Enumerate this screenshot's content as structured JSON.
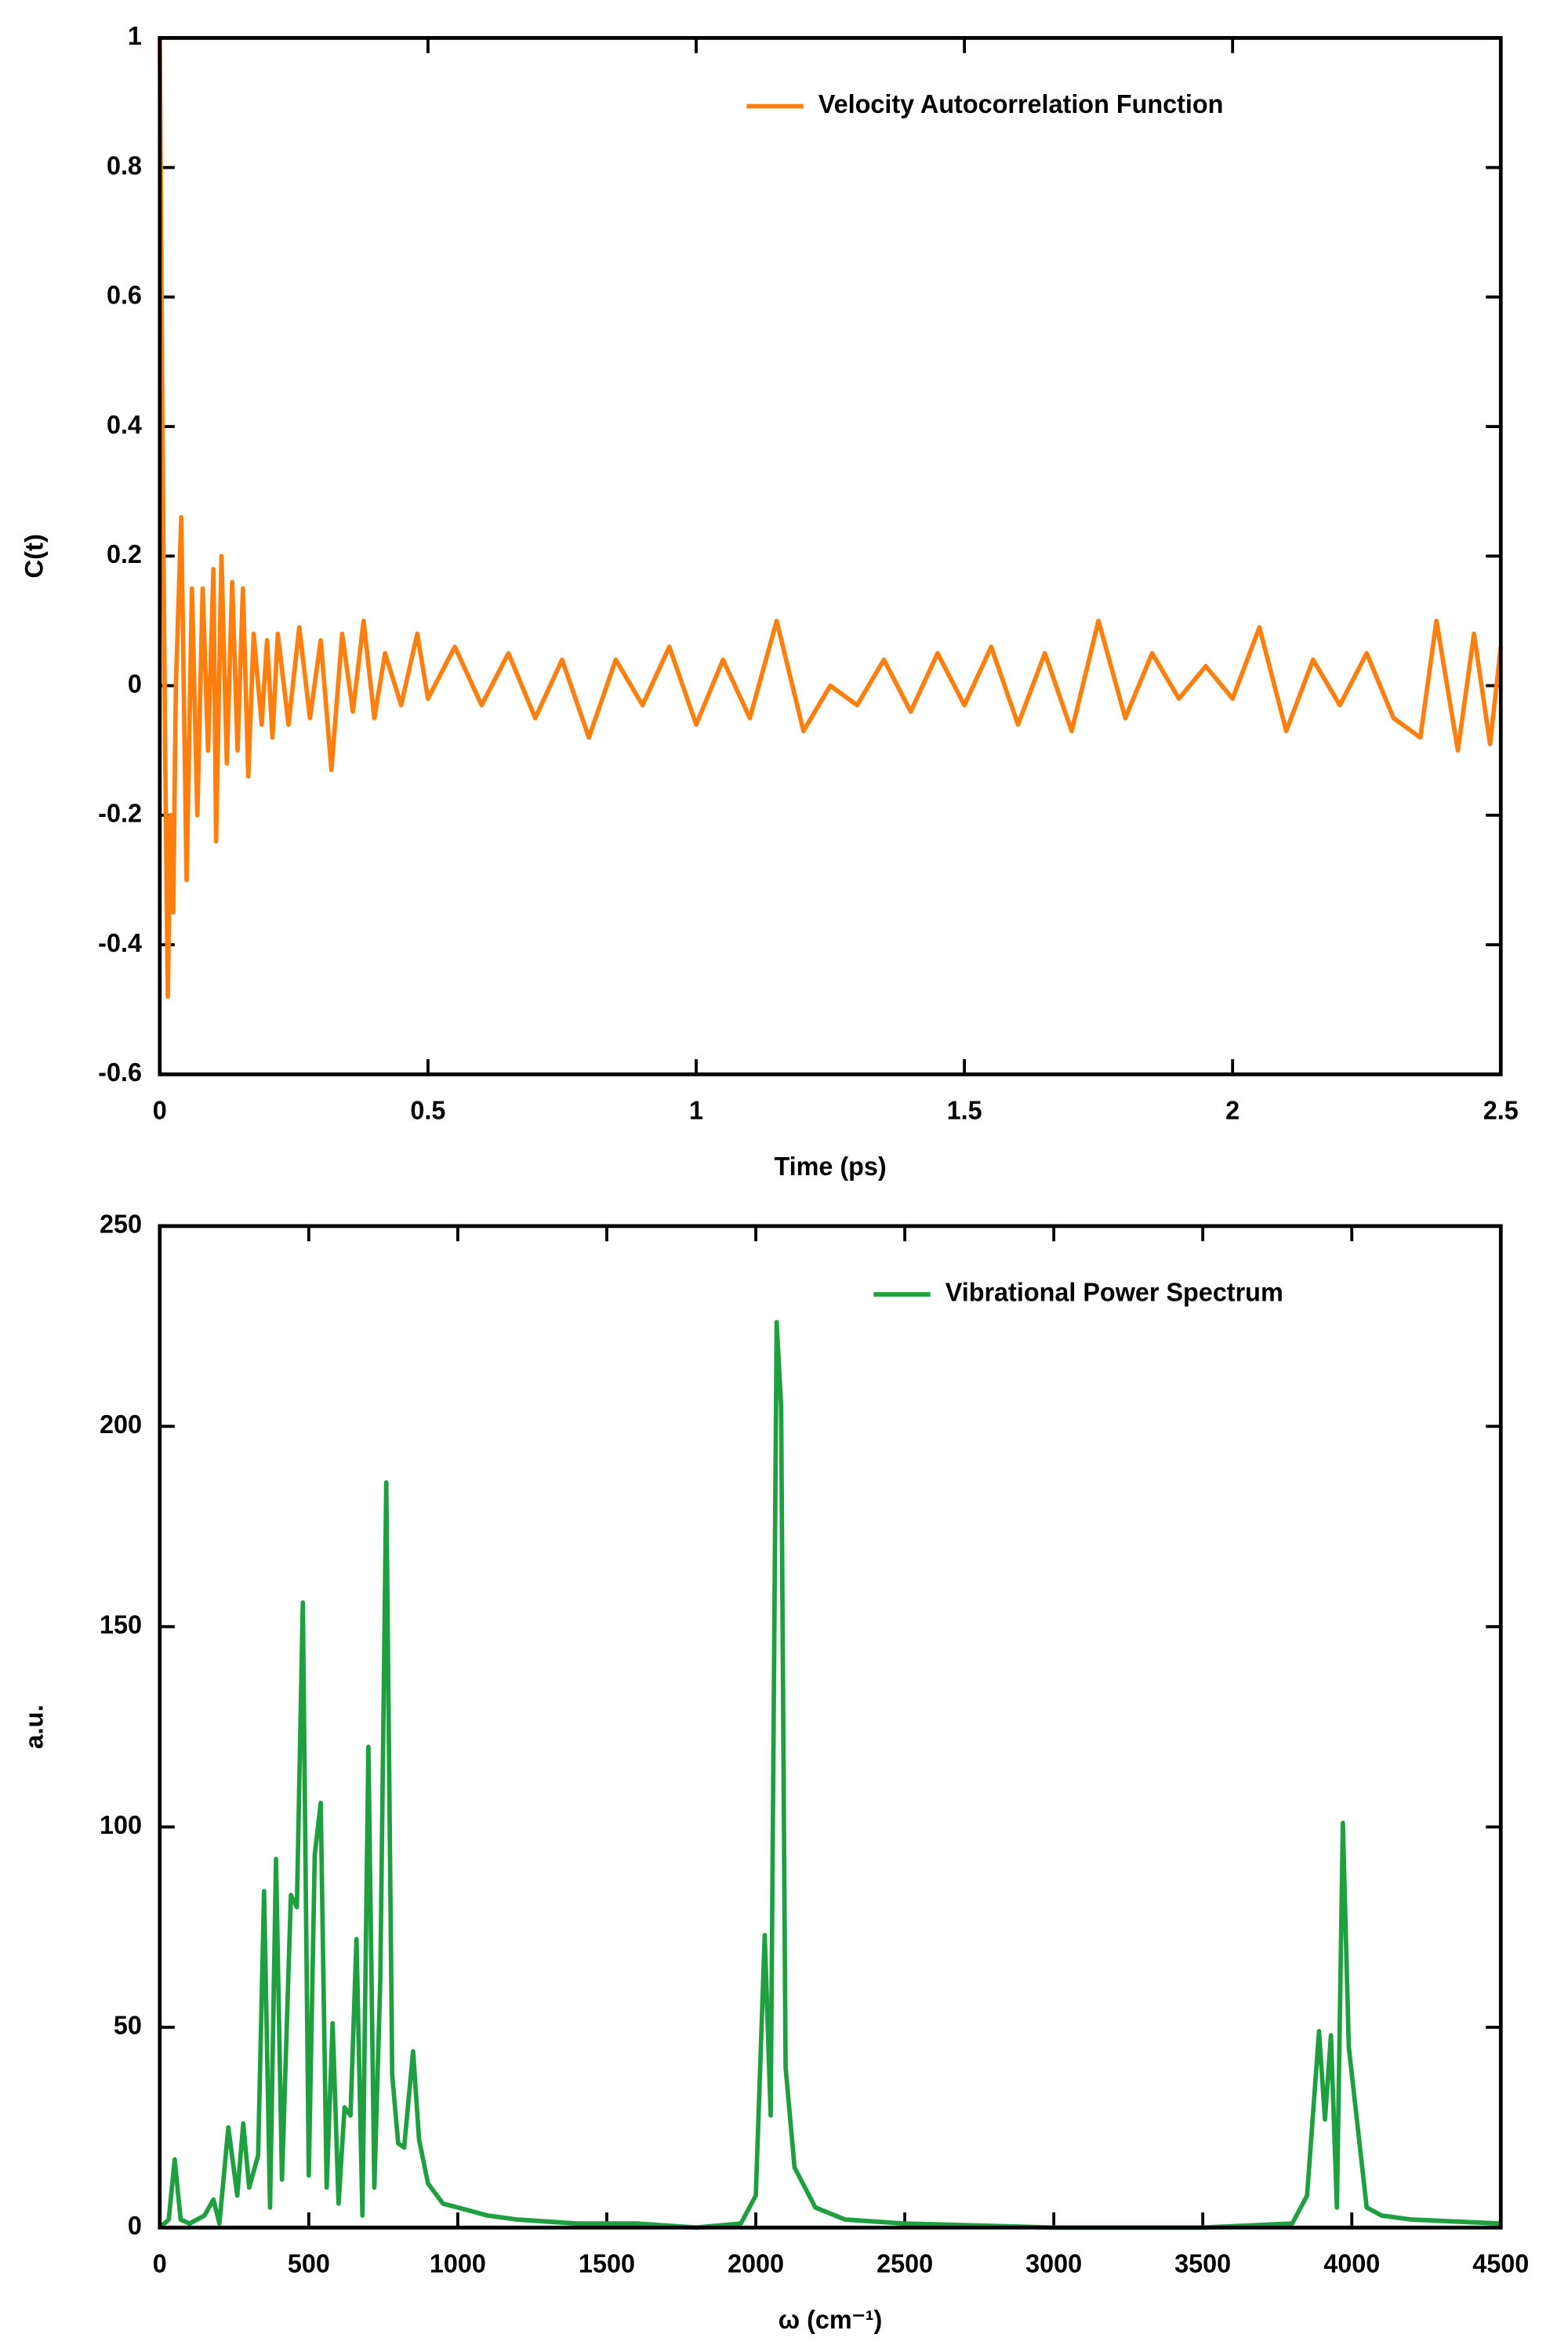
{
  "chart_data": [
    {
      "type": "line",
      "xlabel": "Time (ps)",
      "ylabel": "C(t)",
      "xlim": [
        0,
        2.5
      ],
      "ylim": [
        -0.6,
        1
      ],
      "xticks": [
        0,
        0.5,
        1,
        1.5,
        2,
        2.5
      ],
      "yticks": [
        1,
        0.8,
        0.6,
        0.4,
        0.2,
        0,
        -0.2,
        -0.4,
        -0.6
      ],
      "legend": "upper right",
      "x": [
        0,
        0.005,
        0.01,
        0.015,
        0.02,
        0.025,
        0.03,
        0.04,
        0.05,
        0.06,
        0.07,
        0.08,
        0.09,
        0.1,
        0.105,
        0.115,
        0.125,
        0.135,
        0.145,
        0.155,
        0.165,
        0.175,
        0.19,
        0.2,
        0.21,
        0.22,
        0.24,
        0.26,
        0.28,
        0.3,
        0.32,
        0.34,
        0.36,
        0.38,
        0.4,
        0.42,
        0.45,
        0.48,
        0.5,
        0.55,
        0.6,
        0.65,
        0.7,
        0.75,
        0.8,
        0.85,
        0.9,
        0.95,
        1.0,
        1.05,
        1.1,
        1.15,
        1.2,
        1.25,
        1.3,
        1.35,
        1.4,
        1.45,
        1.5,
        1.55,
        1.6,
        1.65,
        1.7,
        1.75,
        1.8,
        1.85,
        1.9,
        1.95,
        2.0,
        2.05,
        2.1,
        2.15,
        2.2,
        2.25,
        2.3,
        2.35,
        2.38,
        2.42,
        2.45,
        2.48,
        2.5
      ],
      "series": [
        {
          "name": "Velocity Autocorrelation Function",
          "color": "#ff7f0e",
          "values": [
            1,
            0.4,
            -0.1,
            -0.48,
            -0.2,
            -0.35,
            0.0,
            0.26,
            -0.3,
            0.15,
            -0.2,
            0.15,
            -0.1,
            0.18,
            -0.24,
            0.2,
            -0.12,
            0.16,
            -0.1,
            0.15,
            -0.14,
            0.08,
            -0.06,
            0.07,
            -0.08,
            0.08,
            -0.06,
            0.09,
            -0.05,
            0.07,
            -0.13,
            0.08,
            -0.04,
            0.1,
            -0.05,
            0.05,
            -0.03,
            0.08,
            -0.02,
            0.06,
            -0.03,
            0.05,
            -0.05,
            0.04,
            -0.08,
            0.04,
            -0.03,
            0.06,
            -0.06,
            0.04,
            -0.05,
            0.1,
            -0.07,
            0.0,
            -0.03,
            0.04,
            -0.04,
            0.05,
            -0.03,
            0.06,
            -0.06,
            0.05,
            -0.07,
            0.1,
            -0.05,
            0.05,
            -0.02,
            0.03,
            -0.02,
            0.09,
            -0.07,
            0.04,
            -0.03,
            0.05,
            -0.05,
            -0.08,
            0.1,
            -0.1,
            0.08,
            -0.09,
            0.06
          ]
        }
      ]
    },
    {
      "type": "line",
      "xlabel": "ω (cm⁻¹)",
      "ylabel": "a.u.",
      "xlim": [
        0,
        4500
      ],
      "ylim": [
        0,
        250
      ],
      "xticks": [
        0,
        500,
        1000,
        1500,
        2000,
        2500,
        3000,
        3500,
        4000,
        4500
      ],
      "yticks": [
        0,
        50,
        100,
        150,
        200,
        250
      ],
      "legend": "upper right",
      "x": [
        0,
        30,
        50,
        70,
        100,
        150,
        180,
        200,
        230,
        260,
        280,
        300,
        330,
        350,
        370,
        390,
        410,
        440,
        460,
        480,
        500,
        520,
        540,
        560,
        580,
        600,
        620,
        640,
        660,
        680,
        700,
        720,
        740,
        760,
        780,
        800,
        820,
        850,
        870,
        900,
        950,
        1000,
        1100,
        1200,
        1400,
        1600,
        1800,
        1950,
        2000,
        2030,
        2050,
        2070,
        2085,
        2100,
        2130,
        2200,
        2300,
        2500,
        3000,
        3500,
        3800,
        3850,
        3890,
        3910,
        3930,
        3950,
        3970,
        3990,
        4050,
        4100,
        4200,
        4500
      ],
      "series": [
        {
          "name": "Vibrational Power Spectrum",
          "color": "#1fa040",
          "values": [
            0,
            2,
            17,
            2,
            1,
            3,
            7,
            1,
            25,
            8,
            26,
            10,
            18,
            84,
            5,
            92,
            12,
            83,
            80,
            156,
            13,
            93,
            106,
            10,
            51,
            6,
            30,
            28,
            72,
            3,
            120,
            10,
            62,
            186,
            38,
            21,
            20,
            44,
            22,
            11,
            6,
            5,
            3,
            2,
            1,
            1,
            0,
            1,
            8,
            73,
            28,
            226,
            205,
            40,
            15,
            5,
            2,
            1,
            0,
            0,
            1,
            8,
            49,
            27,
            48,
            5,
            101,
            45,
            5,
            3,
            2,
            1
          ]
        }
      ]
    }
  ]
}
